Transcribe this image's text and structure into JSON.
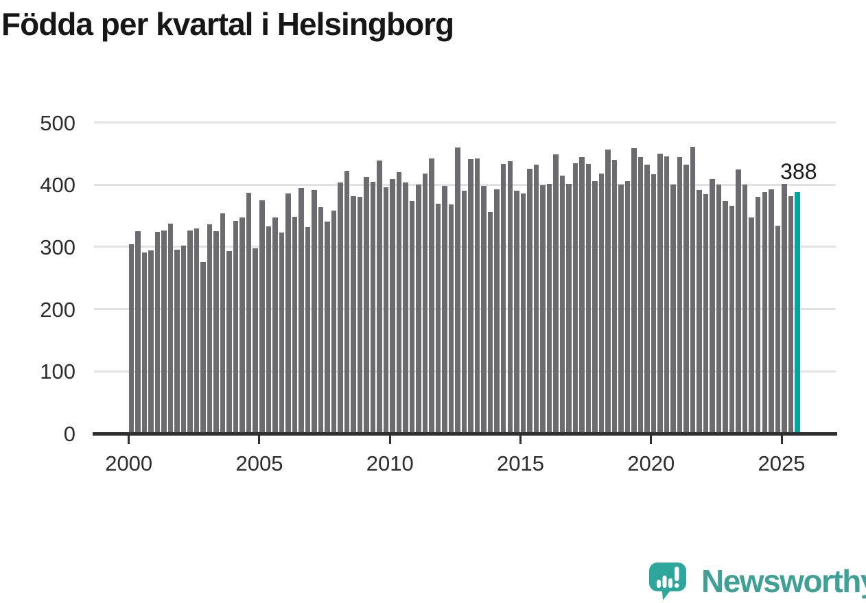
{
  "title": "Födda per kvartal i Helsingborg",
  "annotation": {
    "last_value_label": "388"
  },
  "logo": {
    "text": "Newsworthy",
    "icon": "newsworthy-speech-bubble-chart-icon"
  },
  "colors": {
    "background": "#ffffff",
    "bar": "#6b6b70",
    "highlight_bar": "#00a6a0",
    "gridline": "#e2e2e2",
    "axis": "#2f2f2f",
    "tick_label": "#2d2d2d",
    "title": "#161616",
    "annotation": "#1a1a1a",
    "logo_teal": "#3fa095",
    "logo_icon_teal": "#2da79c"
  },
  "chart_data": {
    "type": "bar",
    "title": "Födda per kvartal i Helsingborg",
    "xlabel": "",
    "ylabel": "",
    "ylim": [
      0,
      500
    ],
    "y_tick_values": [
      0,
      100,
      200,
      300,
      400,
      500
    ],
    "y_tick_labels": [
      "0",
      "100",
      "200",
      "300",
      "400",
      "500"
    ],
    "x_tick_labels": [
      "2000",
      "2005",
      "2010",
      "2015",
      "2020",
      "2025"
    ],
    "grid": true,
    "legend": "none",
    "start_period": "2000-Q1",
    "end_period": "2025-Q3",
    "periods_per_year": 4,
    "highlight_last_bar": true,
    "last_bar_label": "388",
    "values": [
      304,
      325,
      291,
      295,
      324,
      327,
      338,
      296,
      302,
      326,
      330,
      276,
      336,
      325,
      354,
      293,
      342,
      348,
      387,
      298,
      375,
      333,
      347,
      323,
      386,
      349,
      395,
      332,
      392,
      364,
      341,
      358,
      404,
      422,
      382,
      381,
      413,
      405,
      439,
      396,
      409,
      420,
      404,
      374,
      400,
      418,
      442,
      369,
      398,
      368,
      460,
      390,
      441,
      442,
      398,
      356,
      393,
      433,
      438,
      390,
      386,
      426,
      432,
      399,
      402,
      449,
      415,
      401,
      435,
      445,
      434,
      406,
      418,
      457,
      440,
      400,
      406,
      459,
      445,
      432,
      417,
      450,
      446,
      400,
      445,
      432,
      461,
      392,
      385,
      409,
      400,
      374,
      366,
      425,
      400,
      348,
      381,
      388,
      393,
      334,
      401,
      382,
      388
    ]
  }
}
